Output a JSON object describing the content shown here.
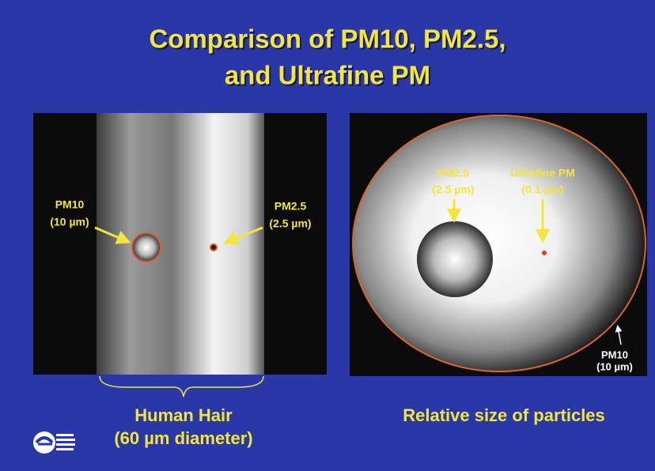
{
  "header": {
    "title_lines": [
      "Comparison of PM10, PM2.5,",
      "and Ultrafine PM"
    ]
  },
  "left_panel": {
    "pm10": {
      "name": "PM10",
      "size": "(10 µm)"
    },
    "pm25": {
      "name": "PM2.5",
      "size": "(2.5 µm)"
    },
    "caption_lines": [
      "Human Hair",
      "(60 µm diameter)"
    ]
  },
  "right_panel": {
    "pm25": {
      "name": "PM2.5",
      "size": "(2.5 µm)"
    },
    "ultrafine": {
      "name": "Ultrafine PM",
      "size": "(0.1 µm)"
    },
    "pm10": {
      "name": "PM10",
      "size": "(10 µm)"
    },
    "caption": "Relative size of particles"
  }
}
